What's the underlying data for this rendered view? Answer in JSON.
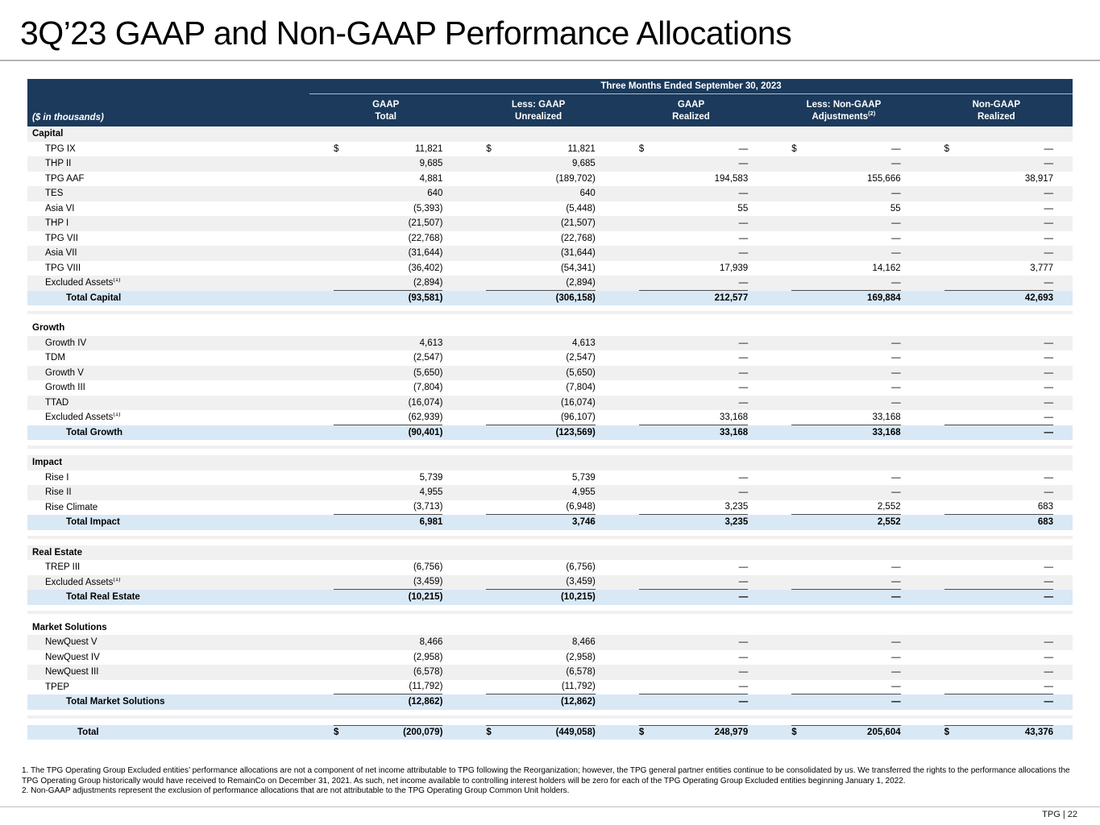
{
  "page": {
    "title": "3Q’23 GAAP and Non-GAAP Performance Allocations",
    "footer_text": "TPG | 22"
  },
  "colors": {
    "header_bg": "#1b3a5c",
    "total_row_bg": "#d9e8f5",
    "stripe_bg": "#f0f0f0",
    "rule_line": "#4d4d4d"
  },
  "table": {
    "units_label": "($ in thousands)",
    "span_header": "Three Months Ended September 30, 2023",
    "columns": [
      {
        "line1": "GAAP",
        "line2": "Total"
      },
      {
        "line1": "Less: GAAP",
        "line2": "Unrealized"
      },
      {
        "line1": "GAAP",
        "line2": "Realized"
      },
      {
        "line1": "Less: Non-GAAP",
        "line2": "Adjustments",
        "sup": "(2)"
      },
      {
        "line1": "Non-GAAP",
        "line2": "Realized"
      }
    ],
    "sections": [
      {
        "name": "Capital",
        "start_shade": "gray",
        "rows": [
          {
            "label": "TPG IX",
            "dollar": true,
            "values": [
              "11,821",
              "11,821",
              "—",
              "—",
              "—"
            ]
          },
          {
            "label": "THP II",
            "values": [
              "9,685",
              "9,685",
              "—",
              "—",
              "—"
            ]
          },
          {
            "label": "TPG AAF",
            "values": [
              "4,881",
              "(189,702)",
              "194,583",
              "155,666",
              "38,917"
            ]
          },
          {
            "label": "TES",
            "values": [
              "640",
              "640",
              "—",
              "—",
              "—"
            ]
          },
          {
            "label": "Asia VI",
            "values": [
              "(5,393)",
              "(5,448)",
              "55",
              "55",
              "—"
            ]
          },
          {
            "label": "THP I",
            "values": [
              "(21,507)",
              "(21,507)",
              "—",
              "—",
              "—"
            ]
          },
          {
            "label": "TPG VII",
            "values": [
              "(22,768)",
              "(22,768)",
              "—",
              "—",
              "—"
            ]
          },
          {
            "label": "Asia VII",
            "values": [
              "(31,644)",
              "(31,644)",
              "—",
              "—",
              "—"
            ]
          },
          {
            "label": "TPG VIII",
            "values": [
              "(36,402)",
              "(54,341)",
              "17,939",
              "14,162",
              "3,777"
            ]
          },
          {
            "label": "Excluded Assets",
            "sup": "(1)",
            "underline": true,
            "values": [
              "(2,894)",
              "(2,894)",
              "—",
              "—",
              "—"
            ]
          }
        ],
        "total": {
          "label": "Total Capital",
          "values": [
            "(93,581)",
            "(306,158)",
            "212,577",
            "169,884",
            "42,693"
          ]
        }
      },
      {
        "name": "Growth",
        "start_shade": "white",
        "rows": [
          {
            "label": "Growth IV",
            "values": [
              "4,613",
              "4,613",
              "—",
              "—",
              "—"
            ]
          },
          {
            "label": "TDM",
            "values": [
              "(2,547)",
              "(2,547)",
              "—",
              "—",
              "—"
            ]
          },
          {
            "label": "Growth V",
            "values": [
              "(5,650)",
              "(5,650)",
              "—",
              "—",
              "—"
            ]
          },
          {
            "label": "Growth III",
            "values": [
              "(7,804)",
              "(7,804)",
              "—",
              "—",
              "—"
            ]
          },
          {
            "label": "TTAD",
            "values": [
              "(16,074)",
              "(16,074)",
              "—",
              "—",
              "—"
            ]
          },
          {
            "label": "Excluded Assets",
            "sup": "(1)",
            "underline": true,
            "values": [
              "(62,939)",
              "(96,107)",
              "33,168",
              "33,168",
              "—"
            ]
          }
        ],
        "total": {
          "label": "Total Growth",
          "values": [
            "(90,401)",
            "(123,569)",
            "33,168",
            "33,168",
            "—"
          ]
        }
      },
      {
        "name": "Impact",
        "start_shade": "gray",
        "rows": [
          {
            "label": "Rise I",
            "values": [
              "5,739",
              "5,739",
              "—",
              "—",
              "—"
            ]
          },
          {
            "label": "Rise II",
            "values": [
              "4,955",
              "4,955",
              "—",
              "—",
              "—"
            ]
          },
          {
            "label": "Rise Climate",
            "underline": true,
            "values": [
              "(3,713)",
              "(6,948)",
              "3,235",
              "2,552",
              "683"
            ]
          }
        ],
        "total": {
          "label": "Total Impact",
          "values": [
            "6,981",
            "3,746",
            "3,235",
            "2,552",
            "683"
          ]
        }
      },
      {
        "name": "Real Estate",
        "start_shade": "gray",
        "rows": [
          {
            "label": "TREP III",
            "values": [
              "(6,756)",
              "(6,756)",
              "—",
              "—",
              "—"
            ]
          },
          {
            "label": "Excluded Assets",
            "sup": "(1)",
            "underline": true,
            "values": [
              "(3,459)",
              "(3,459)",
              "—",
              "—",
              "—"
            ]
          }
        ],
        "total": {
          "label": "Total Real Estate",
          "values": [
            "(10,215)",
            "(10,215)",
            "—",
            "—",
            "—"
          ]
        }
      },
      {
        "name": "Market Solutions",
        "start_shade": "white",
        "rows": [
          {
            "label": "NewQuest V",
            "values": [
              "8,466",
              "8,466",
              "—",
              "—",
              "—"
            ]
          },
          {
            "label": "NewQuest IV",
            "values": [
              "(2,958)",
              "(2,958)",
              "—",
              "—",
              "—"
            ]
          },
          {
            "label": "NewQuest III",
            "values": [
              "(6,578)",
              "(6,578)",
              "—",
              "—",
              "—"
            ]
          },
          {
            "label": "TPEP",
            "underline": true,
            "values": [
              "(11,792)",
              "(11,792)",
              "—",
              "—",
              "—"
            ]
          }
        ],
        "total": {
          "label": "Total Market Solutions",
          "values": [
            "(12,862)",
            "(12,862)",
            "—",
            "—",
            "—"
          ]
        }
      }
    ],
    "grand_total": {
      "label": "Total",
      "dollar": true,
      "values": [
        "(200,079)",
        "(449,058)",
        "248,979",
        "205,604",
        "43,376"
      ]
    }
  },
  "footnotes": [
    "1. The TPG Operating Group Excluded entities’ performance allocations are not a component of net income attributable to TPG following the Reorganization; however, the TPG general partner entities continue to be consolidated by us. We transferred the rights to the performance allocations the TPG Operating Group historically would have received to RemainCo on December 31, 2021. As such, net income available to controlling interest holders will be zero for each of the TPG Operating Group Excluded entities beginning January 1, 2022.",
    "2. Non-GAAP adjustments represent the exclusion of performance allocations that are not attributable to the TPG Operating Group Common Unit holders."
  ]
}
